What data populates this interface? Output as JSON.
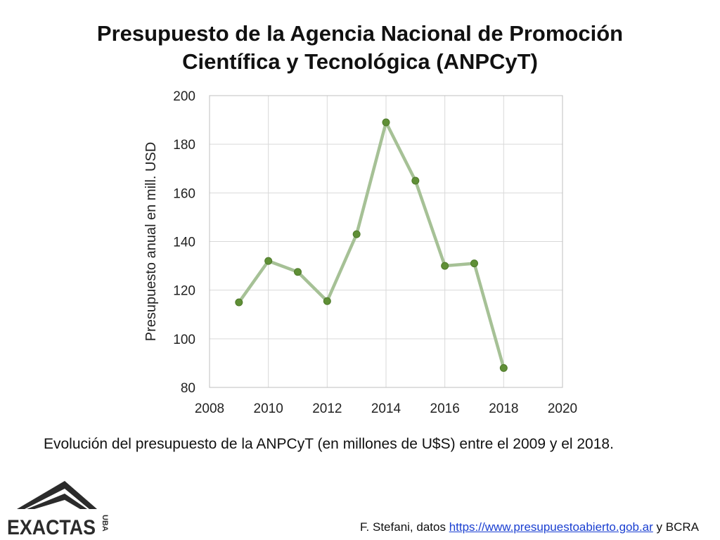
{
  "slide": {
    "title_line1": "Presupuesto de la Agencia Nacional de Promoción",
    "title_line2": "Científica y Tecnológica (ANPCyT)",
    "caption": "Evolución del presupuesto de la ANPCyT (en millones de U$S) entre el 2009 y el 2018.",
    "credit_prefix": "F. Stefani, datos ",
    "credit_link": "https://www.presupuestoabierto.gob.ar",
    "credit_suffix": " y BCRA",
    "logo_text": "EXACTAS",
    "logo_side_text": "UBA"
  },
  "colors": {
    "line": "#a6c196",
    "marker": "#5f8f36",
    "grid": "#d9d9d9",
    "axis": "#bfbfbf",
    "link": "#1a3fd1"
  },
  "chart_data": {
    "type": "line",
    "title": "",
    "xlabel": "",
    "ylabel": "Presupuesto anual en mill. USD",
    "xlim": [
      2008,
      2020
    ],
    "ylim": [
      80,
      200
    ],
    "xticks": [
      2008,
      2010,
      2012,
      2014,
      2016,
      2018,
      2020
    ],
    "yticks": [
      80,
      100,
      120,
      140,
      160,
      180,
      200
    ],
    "grid": true,
    "series": [
      {
        "x": [
          2009,
          2010,
          2011,
          2012,
          2013,
          2014,
          2015,
          2016,
          2017,
          2018
        ],
        "values": [
          115,
          132,
          127.5,
          115.5,
          143,
          189,
          165,
          130,
          131,
          88
        ]
      }
    ]
  }
}
